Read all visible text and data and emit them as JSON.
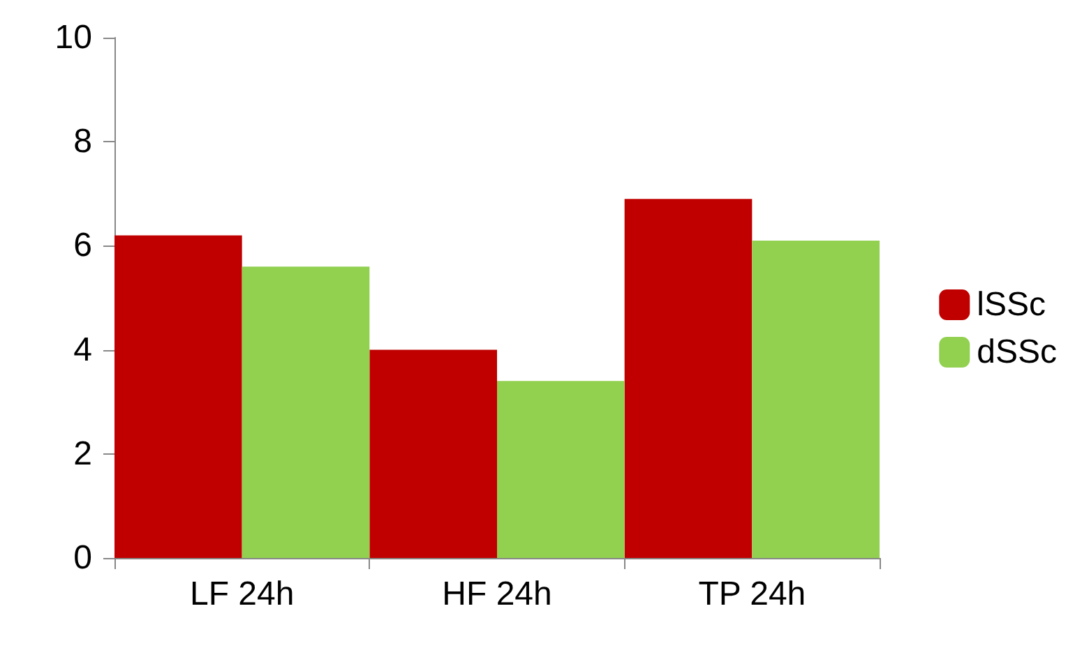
{
  "chart_data": {
    "type": "bar",
    "categories": [
      "LF 24h",
      "HF 24h",
      "TP 24h"
    ],
    "series": [
      {
        "name": "lSSc",
        "color": "#c00000",
        "values": [
          6.2,
          4.0,
          6.9
        ]
      },
      {
        "name": "dSSc",
        "color": "#92d050",
        "values": [
          5.6,
          3.4,
          6.1
        ]
      }
    ],
    "ylim": [
      0,
      10
    ],
    "yticks": [
      0,
      2,
      4,
      6,
      8,
      10
    ],
    "grid": false,
    "legend": "right"
  }
}
